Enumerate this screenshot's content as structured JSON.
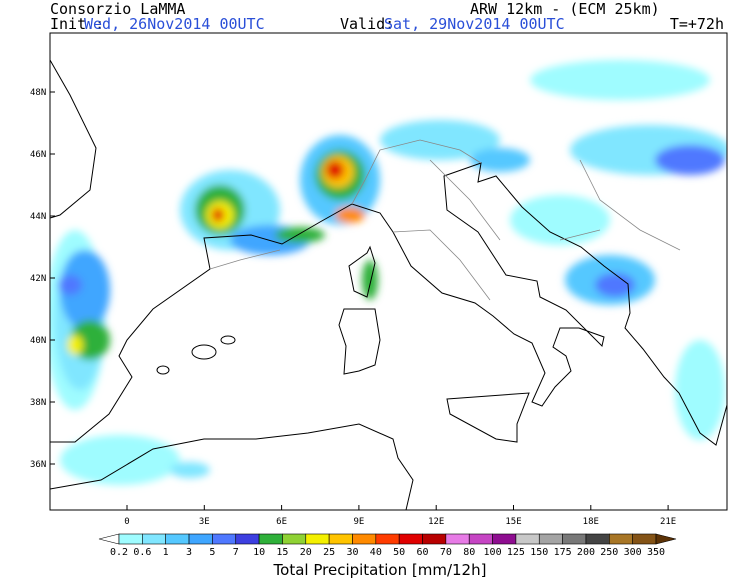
{
  "header": {
    "org": "Consorzio LaMMA",
    "model": "ARW 12km - (ECM 25km)",
    "init_label": "Init.:",
    "init_time": "Wed, 26Nov2014 00UTC",
    "valid_label": "Valid:",
    "valid_time": "Sat, 29Nov2014 00UTC",
    "lead": "T=+72h"
  },
  "map": {
    "lat_labels": [
      "48N",
      "46N",
      "44N",
      "42N",
      "40N",
      "38N",
      "36N"
    ],
    "lon_labels": [
      "0",
      "3E",
      "6E",
      "9E",
      "12E",
      "15E",
      "18E",
      "21E"
    ]
  },
  "colorbar": {
    "thresholds": [
      0.2,
      0.6,
      1,
      3,
      5,
      7,
      10,
      15,
      20,
      25,
      30,
      40,
      50,
      60,
      70,
      80,
      100,
      125,
      150,
      175,
      200,
      250,
      300,
      350
    ],
    "colors": [
      "#ffffff",
      "#9ffcff",
      "#80e6ff",
      "#55c8ff",
      "#3fa6ff",
      "#4f78ff",
      "#3d3fe0",
      "#2fb03a",
      "#8fd234",
      "#f4f000",
      "#ffc400",
      "#ff8a00",
      "#ff3c00",
      "#e00000",
      "#b80000",
      "#e77be6",
      "#c645c4",
      "#8e0d90",
      "#c8c8c8",
      "#a4a4a4",
      "#787878",
      "#444444",
      "#a87626",
      "#845316",
      "#5c3206"
    ],
    "title": "Total Precipitation [mm/12h]"
  }
}
